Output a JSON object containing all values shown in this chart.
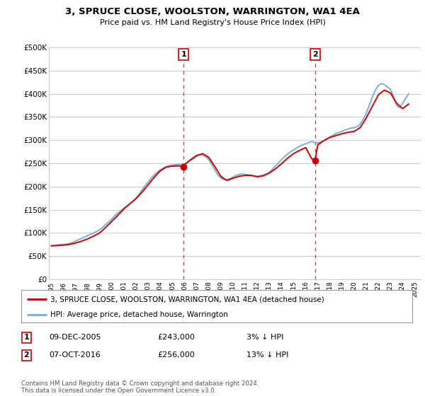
{
  "title": "3, SPRUCE CLOSE, WOOLSTON, WARRINGTON, WA1 4EA",
  "subtitle": "Price paid vs. HM Land Registry's House Price Index (HPI)",
  "ylabel_ticks": [
    "£0",
    "£50K",
    "£100K",
    "£150K",
    "£200K",
    "£250K",
    "£300K",
    "£350K",
    "£400K",
    "£450K",
    "£500K"
  ],
  "ytick_values": [
    0,
    50000,
    100000,
    150000,
    200000,
    250000,
    300000,
    350000,
    400000,
    450000,
    500000
  ],
  "ylim": [
    0,
    500000
  ],
  "xlim_start": 1994.8,
  "xlim_end": 2025.5,
  "xtick_years": [
    1995,
    1996,
    1997,
    1998,
    1999,
    2000,
    2001,
    2002,
    2003,
    2004,
    2005,
    2006,
    2007,
    2008,
    2009,
    2010,
    2011,
    2012,
    2013,
    2014,
    2015,
    2016,
    2017,
    2018,
    2019,
    2020,
    2021,
    2022,
    2023,
    2024,
    2025
  ],
  "sale1_x": 2005.92,
  "sale1_y": 243000,
  "sale1_label": "1",
  "sale1_date": "09-DEC-2005",
  "sale1_price": "£243,000",
  "sale1_hpi": "3% ↓ HPI",
  "sale2_x": 2016.77,
  "sale2_y": 256000,
  "sale2_label": "2",
  "sale2_date": "07-OCT-2016",
  "sale2_price": "£256,000",
  "sale2_hpi": "13% ↓ HPI",
  "line_color_property": "#cc0000",
  "line_color_hpi": "#7bafd4",
  "vline_color": "#cc0000",
  "bg_color": "#ffffff",
  "grid_color": "#cccccc",
  "legend_label_property": "3, SPRUCE CLOSE, WOOLSTON, WARRINGTON, WA1 4EA (detached house)",
  "legend_label_hpi": "HPI: Average price, detached house, Warrington",
  "footer": "Contains HM Land Registry data © Crown copyright and database right 2024.\nThis data is licensed under the Open Government Licence v3.0.",
  "hpi_x": [
    1995.0,
    1995.25,
    1995.5,
    1995.75,
    1996.0,
    1996.25,
    1996.5,
    1996.75,
    1997.0,
    1997.25,
    1997.5,
    1997.75,
    1998.0,
    1998.25,
    1998.5,
    1998.75,
    1999.0,
    1999.25,
    1999.5,
    1999.75,
    2000.0,
    2000.25,
    2000.5,
    2000.75,
    2001.0,
    2001.25,
    2001.5,
    2001.75,
    2002.0,
    2002.25,
    2002.5,
    2002.75,
    2003.0,
    2003.25,
    2003.5,
    2003.75,
    2004.0,
    2004.25,
    2004.5,
    2004.75,
    2005.0,
    2005.25,
    2005.5,
    2005.75,
    2006.0,
    2006.25,
    2006.5,
    2006.75,
    2007.0,
    2007.25,
    2007.5,
    2007.75,
    2008.0,
    2008.25,
    2008.5,
    2008.75,
    2009.0,
    2009.25,
    2009.5,
    2009.75,
    2010.0,
    2010.25,
    2010.5,
    2010.75,
    2011.0,
    2011.25,
    2011.5,
    2011.75,
    2012.0,
    2012.25,
    2012.5,
    2012.75,
    2013.0,
    2013.25,
    2013.5,
    2013.75,
    2014.0,
    2014.25,
    2014.5,
    2014.75,
    2015.0,
    2015.25,
    2015.5,
    2015.75,
    2016.0,
    2016.25,
    2016.5,
    2016.75,
    2017.0,
    2017.25,
    2017.5,
    2017.75,
    2018.0,
    2018.25,
    2018.5,
    2018.75,
    2019.0,
    2019.25,
    2019.5,
    2019.75,
    2020.0,
    2020.25,
    2020.5,
    2020.75,
    2021.0,
    2021.25,
    2021.5,
    2021.75,
    2022.0,
    2022.25,
    2022.5,
    2022.75,
    2023.0,
    2023.25,
    2023.5,
    2023.75,
    2024.0,
    2024.25,
    2024.5
  ],
  "hpi_y": [
    72000,
    73000,
    74000,
    74500,
    75000,
    76000,
    77000,
    79000,
    82000,
    85000,
    88000,
    91000,
    94000,
    97000,
    100000,
    103000,
    107000,
    112000,
    118000,
    124000,
    130000,
    137000,
    143000,
    148000,
    153000,
    158000,
    163000,
    168000,
    175000,
    183000,
    193000,
    202000,
    210000,
    218000,
    225000,
    231000,
    236000,
    240000,
    243000,
    245000,
    246000,
    247000,
    247500,
    248000,
    249000,
    252000,
    256000,
    260000,
    265000,
    268000,
    268000,
    264000,
    258000,
    248000,
    236000,
    225000,
    218000,
    215000,
    215000,
    217000,
    220000,
    224000,
    226000,
    227000,
    226000,
    225000,
    224000,
    223000,
    222000,
    223000,
    225000,
    227000,
    231000,
    237000,
    244000,
    251000,
    258000,
    264000,
    270000,
    275000,
    279000,
    283000,
    287000,
    290000,
    292000,
    295000,
    297000,
    295000,
    294000,
    296000,
    299000,
    303000,
    307000,
    311000,
    314000,
    317000,
    319000,
    322000,
    324000,
    326000,
    327000,
    329000,
    335000,
    345000,
    358000,
    375000,
    393000,
    408000,
    418000,
    422000,
    420000,
    415000,
    410000,
    395000,
    375000,
    370000,
    380000,
    390000,
    400000
  ],
  "prop_x": [
    1995.0,
    1995.5,
    1996.0,
    1996.5,
    1997.0,
    1997.5,
    1998.0,
    1998.5,
    1999.0,
    1999.5,
    2000.0,
    2000.5,
    2001.0,
    2001.5,
    2002.0,
    2002.5,
    2003.0,
    2003.5,
    2004.0,
    2004.5,
    2005.0,
    2005.5,
    2005.92,
    2006.0,
    2006.5,
    2007.0,
    2007.5,
    2008.0,
    2008.5,
    2009.0,
    2009.5,
    2010.0,
    2010.5,
    2011.0,
    2011.5,
    2012.0,
    2012.5,
    2013.0,
    2013.5,
    2014.0,
    2014.5,
    2015.0,
    2015.5,
    2016.0,
    2016.5,
    2016.77,
    2017.0,
    2017.5,
    2018.0,
    2018.5,
    2019.0,
    2019.5,
    2020.0,
    2020.5,
    2021.0,
    2021.5,
    2022.0,
    2022.5,
    2023.0,
    2023.5,
    2024.0,
    2024.5
  ],
  "prop_y": [
    72000,
    72500,
    73500,
    75000,
    78000,
    82000,
    87000,
    93000,
    100000,
    112000,
    125000,
    138000,
    152000,
    163000,
    174000,
    188000,
    204000,
    220000,
    234000,
    242000,
    244000,
    244500,
    243000,
    247000,
    258000,
    267000,
    271000,
    263000,
    243000,
    222000,
    213000,
    218000,
    222000,
    224000,
    224000,
    221000,
    223000,
    229000,
    238000,
    249000,
    261000,
    271000,
    278000,
    284000,
    260000,
    256000,
    290000,
    299000,
    306000,
    310000,
    314000,
    317000,
    319000,
    327000,
    348000,
    373000,
    398000,
    408000,
    402000,
    380000,
    368000,
    378000
  ]
}
